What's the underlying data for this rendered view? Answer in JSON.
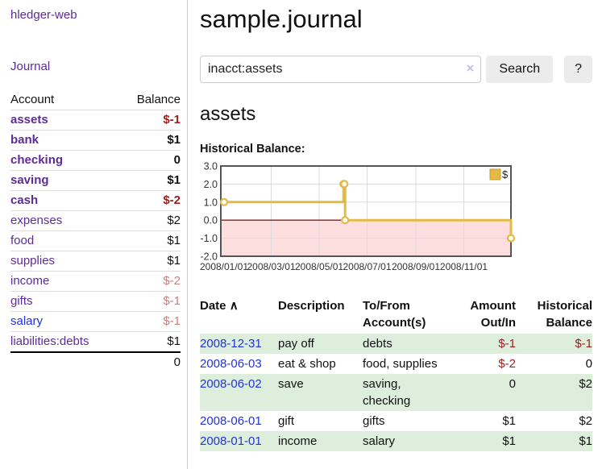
{
  "app": {
    "name": "hledger-web"
  },
  "nav": {
    "journal": "Journal"
  },
  "sidebar": {
    "headers": {
      "account": "Account",
      "balance": "Balance"
    },
    "accounts": [
      {
        "name": "assets",
        "depth": 0,
        "bold": true,
        "balance": "$-1",
        "negative": true,
        "muted": false,
        "link_color": "purple"
      },
      {
        "name": "bank",
        "depth": 1,
        "bold": true,
        "balance": "$1",
        "negative": false,
        "muted": false,
        "link_color": "purple"
      },
      {
        "name": "checking",
        "depth": 2,
        "bold": true,
        "balance": "0",
        "negative": false,
        "muted": false,
        "link_color": "purple"
      },
      {
        "name": "saving",
        "depth": 2,
        "bold": true,
        "balance": "$1",
        "negative": false,
        "muted": false,
        "link_color": "purple"
      },
      {
        "name": "cash",
        "depth": 1,
        "bold": true,
        "balance": "$-2",
        "negative": true,
        "muted": false,
        "link_color": "purple"
      },
      {
        "name": "expenses",
        "depth": 0,
        "bold": false,
        "balance": "$2",
        "negative": false,
        "muted": false,
        "link_color": "purple"
      },
      {
        "name": "food",
        "depth": 1,
        "bold": false,
        "balance": "$1",
        "negative": false,
        "muted": false,
        "link_color": "purple"
      },
      {
        "name": "supplies",
        "depth": 1,
        "bold": false,
        "balance": "$1",
        "negative": false,
        "muted": false,
        "link_color": "purple"
      },
      {
        "name": "income",
        "depth": 0,
        "bold": false,
        "balance": "$-2",
        "negative": true,
        "muted": true,
        "link_color": "purple"
      },
      {
        "name": "gifts",
        "depth": 1,
        "bold": false,
        "balance": "$-1",
        "negative": true,
        "muted": true,
        "link_color": "purple"
      },
      {
        "name": "salary",
        "depth": 1,
        "bold": false,
        "balance": "$-1",
        "negative": true,
        "muted": true,
        "link_color": "blue"
      },
      {
        "name": "liabilities:debts",
        "depth": 0,
        "bold": false,
        "balance": "$1",
        "negative": false,
        "muted": false,
        "link_color": "purple"
      }
    ],
    "total": "0"
  },
  "page": {
    "title": "sample.journal",
    "account_heading": "assets",
    "chart_label": "Historical Balance:"
  },
  "search": {
    "value": "inacct:assets",
    "clear_icon": "×",
    "button_label": "Search",
    "help_label": "?"
  },
  "chart_data": {
    "type": "line",
    "step": true,
    "title": "Historical Balance:",
    "series": [
      {
        "name": "$",
        "points": [
          [
            "2008-01-01",
            1
          ],
          [
            "2008-06-01",
            2
          ],
          [
            "2008-06-02",
            2
          ],
          [
            "2008-06-03",
            0
          ],
          [
            "2008-12-31",
            -1
          ]
        ]
      }
    ],
    "x_range": [
      "2008-01-01",
      "2008-12-31"
    ],
    "ylim": [
      -2,
      3
    ],
    "yticks": [
      3,
      2,
      1,
      0,
      -1,
      -2
    ],
    "xticks": [
      {
        "date": "2008-01-01",
        "label": "2008/01/01"
      },
      {
        "date": "2008-03-01",
        "label": "2008/03/01"
      },
      {
        "date": "2008-05-01",
        "label": "2008/05/01"
      },
      {
        "date": "2008-07-01",
        "label": "2008/07/01"
      },
      {
        "date": "2008-09-01",
        "label": "2008/09/01"
      },
      {
        "date": "2008-11-01",
        "label": "2008/11/01"
      }
    ],
    "legend": {
      "label": "$",
      "position": "top-right"
    },
    "grid": true,
    "negative_region_shaded": true
  },
  "register": {
    "headers": {
      "date": "Date",
      "sort_icon": "∧",
      "description": "Description",
      "to_from": "To/From Account(s)",
      "amount": "Amount Out/In",
      "balance": "Historical Balance"
    },
    "rows": [
      {
        "date": "2008-12-31",
        "description": "pay off",
        "to_from": "debts",
        "amount": "$-1",
        "amount_negative": true,
        "balance": "$-1",
        "balance_negative": true
      },
      {
        "date": "2008-06-03",
        "description": "eat & shop",
        "to_from": "food, supplies",
        "amount": "$-2",
        "amount_negative": true,
        "balance": "0",
        "balance_negative": false
      },
      {
        "date": "2008-06-02",
        "description": "save",
        "to_from": "saving,\nchecking",
        "amount": "0",
        "amount_negative": false,
        "balance": "$2",
        "balance_negative": false
      },
      {
        "date": "2008-06-01",
        "description": "gift",
        "to_from": "gifts",
        "amount": "$1",
        "amount_negative": false,
        "balance": "$2",
        "balance_negative": false
      },
      {
        "date": "2008-01-01",
        "description": "income",
        "to_from": "salary",
        "amount": "$1",
        "amount_negative": false,
        "balance": "$1",
        "balance_negative": false
      }
    ]
  },
  "colors": {
    "link_purple": "#5e2b97",
    "link_blue": "#2233dd",
    "negative_red": "#9d1d1d",
    "negative_muted": "#c77f7f",
    "row_green": "#ddeedd",
    "chart_line_gold": "#e2ba45",
    "chart_negative_fill": "#fcdede",
    "chart_zero_line": "#8b1d1d",
    "button_gray": "#ececec"
  }
}
